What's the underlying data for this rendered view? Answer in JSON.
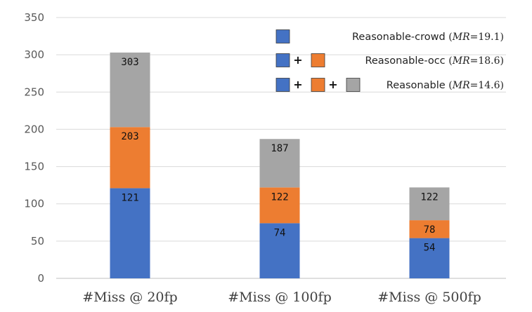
{
  "chart_data": {
    "type": "bar",
    "stacked": true,
    "categories": [
      "#Miss @ 20fp",
      "#Miss @ 100fp",
      "#Miss @ 500fp"
    ],
    "series": [
      {
        "name": "Reasonable-crowd",
        "color": "#4472C4",
        "values": [
          121,
          74,
          54
        ]
      },
      {
        "name": "Reasonable-occ",
        "color": "#ED7D31",
        "values": [
          82,
          48,
          24
        ]
      },
      {
        "name": "Reasonable",
        "color": "#A5A5A5",
        "values": [
          100,
          65,
          44
        ]
      }
    ],
    "data_labels": [
      [
        "121",
        "74",
        "54"
      ],
      [
        "203",
        "122",
        "78"
      ],
      [
        "303",
        "187",
        "122"
      ]
    ],
    "y_ticks": [
      "0",
      "50",
      "100",
      "150",
      "200",
      "250",
      "300",
      "350"
    ],
    "ylim": [
      0,
      350
    ],
    "grid": true,
    "legend_position": "top-right",
    "legend": [
      {
        "swatches": [
          "#4472C4"
        ],
        "label": "Reasonable-crowd",
        "mr_var": "MR",
        "mr_value": "=19.1",
        "mr_text": "(MR=19.1)"
      },
      {
        "swatches": [
          "#4472C4",
          "#ED7D31"
        ],
        "label": "Reasonable-occ",
        "mr_var": "MR",
        "mr_value": "=18.6",
        "mr_text": "(MR=18.6)"
      },
      {
        "swatches": [
          "#4472C4",
          "#ED7D31",
          "#A5A5A5"
        ],
        "label": "Reasonable",
        "mr_var": "MR",
        "mr_value": "=14.6",
        "mr_text": "(MR=14.6)"
      }
    ],
    "legend_plus": "+"
  }
}
